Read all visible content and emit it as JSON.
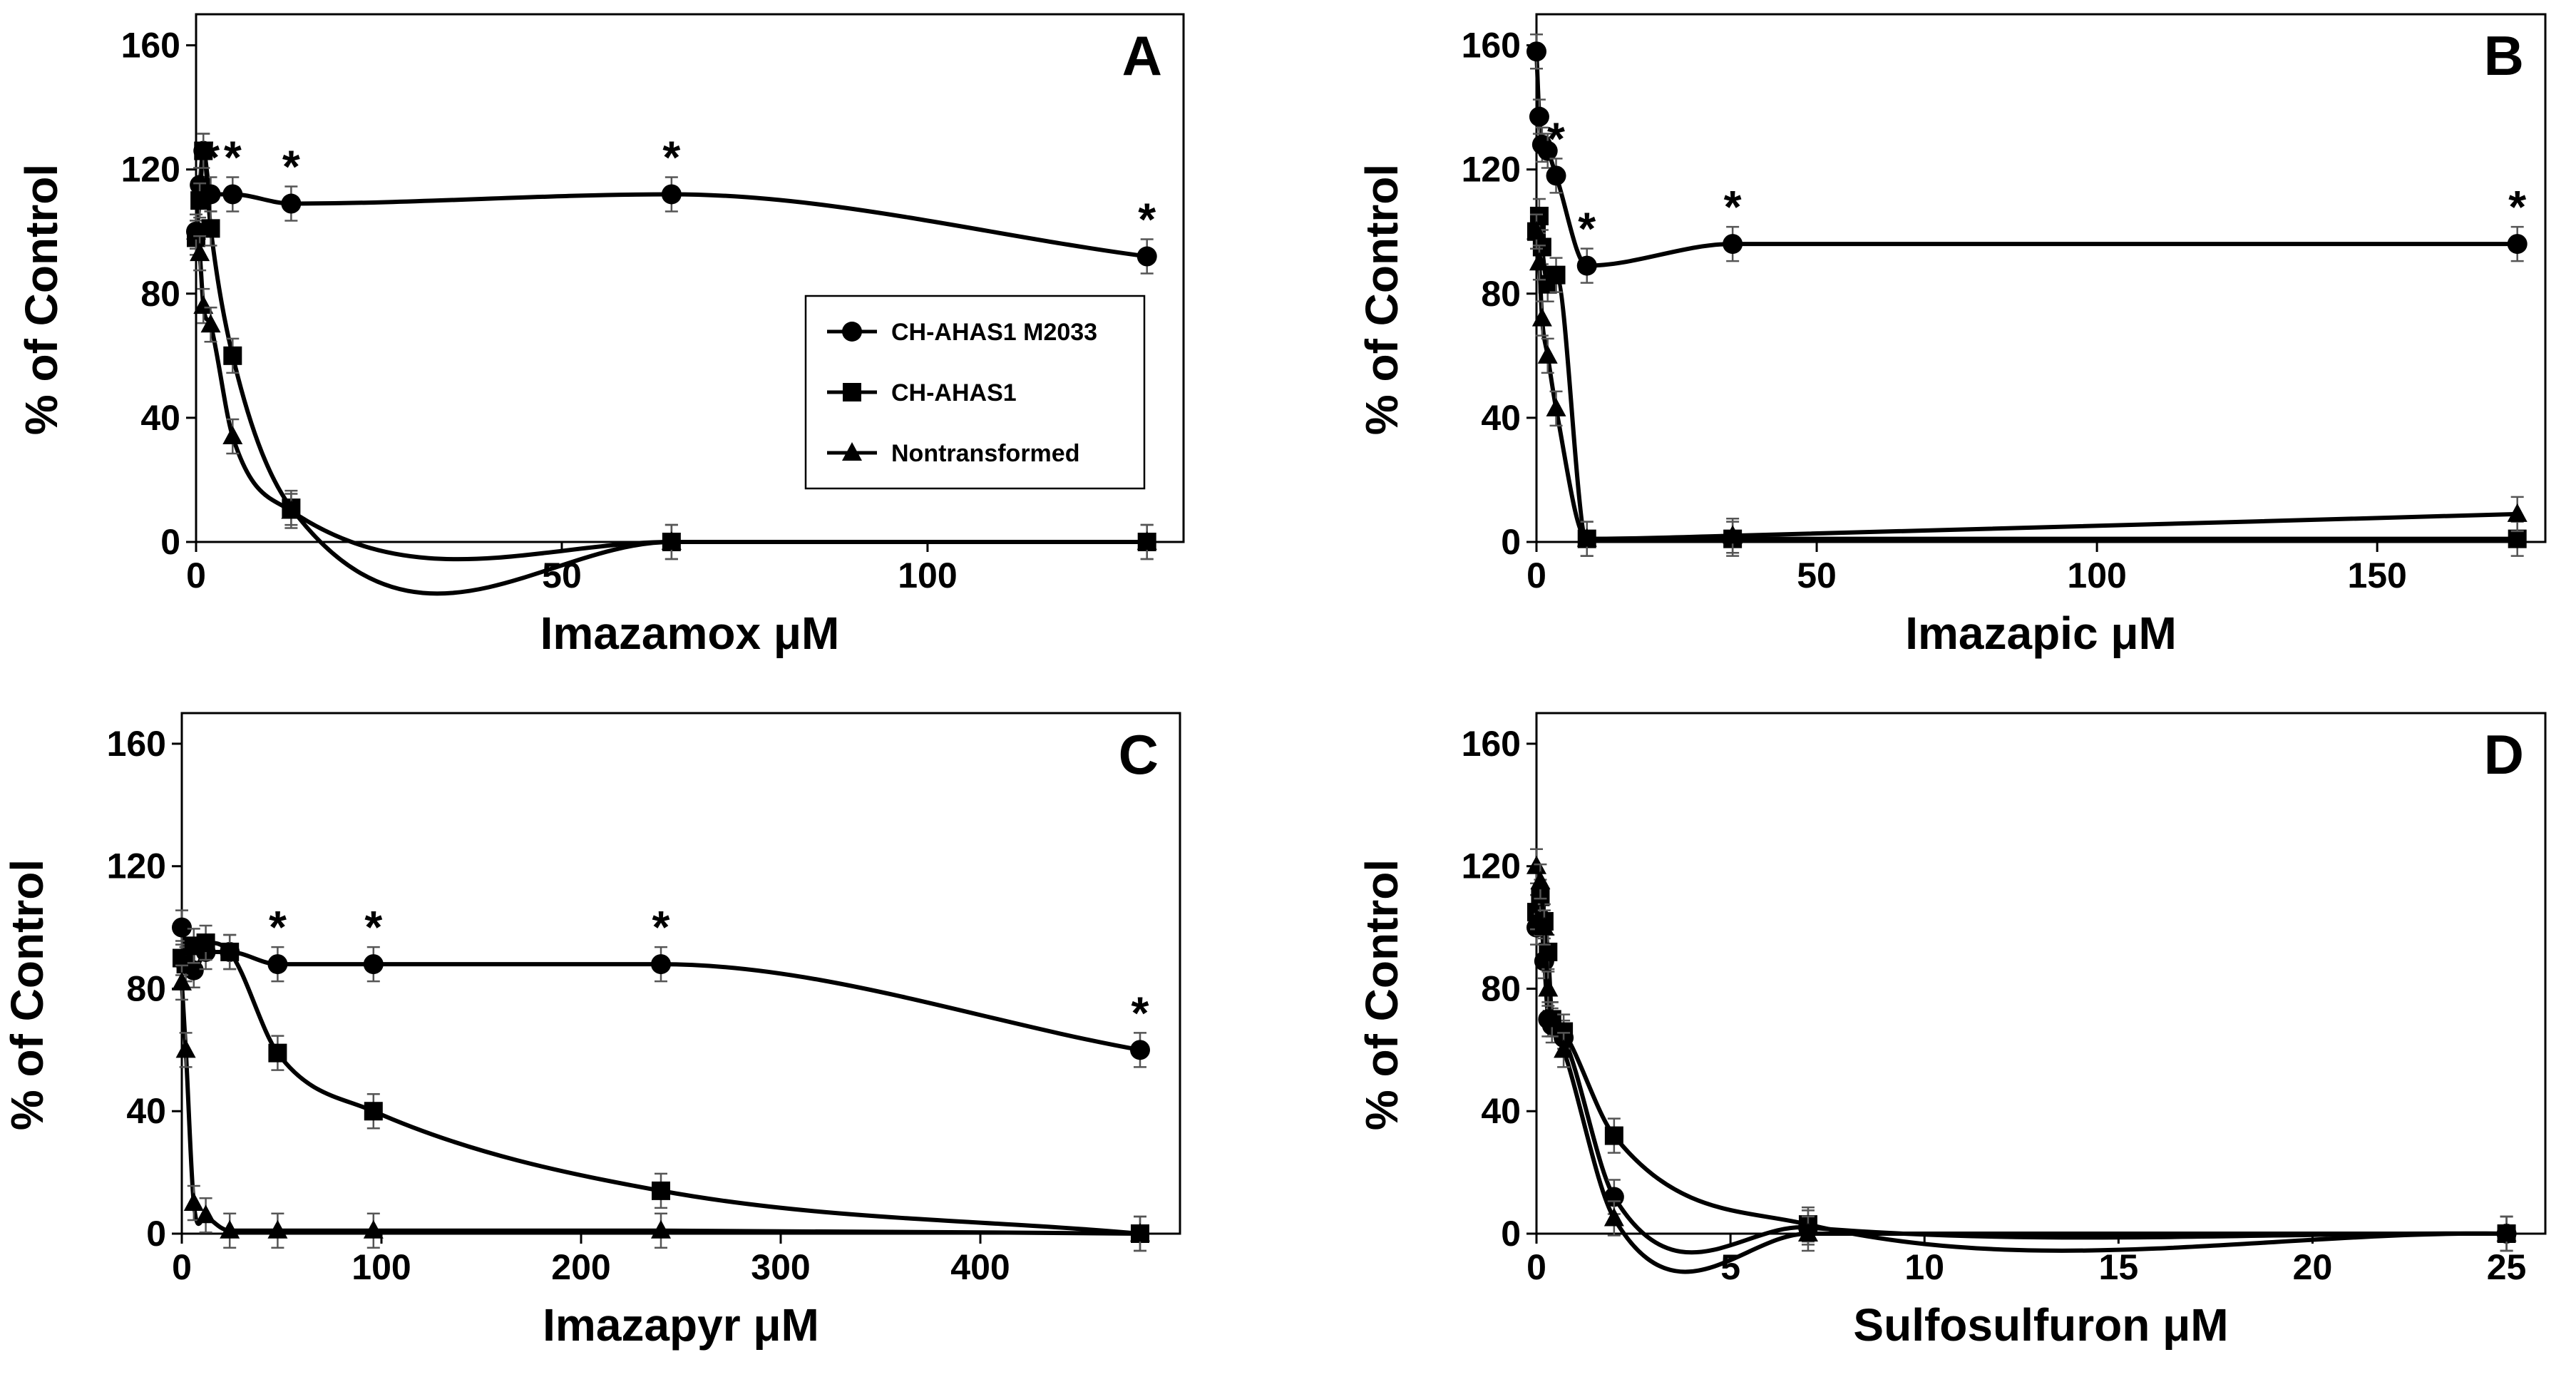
{
  "chart_data": [
    {
      "panel": "A",
      "type": "line",
      "xlabel": "Imazamox μM",
      "ylabel": "% of Control",
      "xlim": [
        0,
        135
      ],
      "ylim": [
        0,
        170
      ],
      "xticks": [
        "0",
        "50",
        "100"
      ],
      "yticks": [
        "0",
        "40",
        "80",
        "120",
        "160"
      ],
      "legend_position": "center-right",
      "series": [
        {
          "name": "CH-AHAS1 M2033",
          "marker": "circle",
          "x": [
            0,
            0.5,
            1,
            2,
            5,
            13,
            65,
            130
          ],
          "y": [
            100,
            115,
            126,
            112,
            112,
            109,
            112,
            92
          ],
          "significant": [
            false,
            false,
            false,
            true,
            true,
            true,
            true,
            true
          ]
        },
        {
          "name": "CH-AHAS1",
          "marker": "square",
          "x": [
            0,
            0.5,
            1,
            2,
            5,
            13,
            65,
            130
          ],
          "y": [
            98,
            110,
            126,
            101,
            60,
            11,
            0,
            0
          ],
          "significant": [
            false,
            false,
            false,
            false,
            false,
            false,
            false,
            false
          ]
        },
        {
          "name": "Nontransformed",
          "marker": "triangle",
          "x": [
            0,
            0.5,
            1,
            2,
            5,
            13,
            65,
            130
          ],
          "y": [
            100,
            93,
            76,
            70,
            34,
            10,
            0,
            0
          ],
          "significant": [
            false,
            false,
            false,
            false,
            false,
            false,
            false,
            false
          ]
        }
      ]
    },
    {
      "panel": "B",
      "type": "line",
      "xlabel": "Imazapic μM",
      "ylabel": "% of Control",
      "xlim": [
        0,
        180
      ],
      "ylim": [
        0,
        170
      ],
      "xticks": [
        "0",
        "50",
        "100",
        "150"
      ],
      "yticks": [
        "0",
        "40",
        "80",
        "120",
        "160"
      ],
      "series": [
        {
          "name": "CH-AHAS1 M2033",
          "marker": "circle",
          "x": [
            0,
            0.5,
            1,
            2,
            3.5,
            9,
            35,
            175
          ],
          "y": [
            158,
            137,
            128,
            126,
            118,
            89,
            96,
            96
          ],
          "significant": [
            false,
            false,
            false,
            false,
            true,
            true,
            true,
            true
          ]
        },
        {
          "name": "CH-AHAS1",
          "marker": "square",
          "x": [
            0,
            0.5,
            1,
            2,
            3.5,
            9,
            35,
            175
          ],
          "y": [
            100,
            105,
            95,
            83,
            86,
            1,
            1,
            1
          ]
        },
        {
          "name": "Nontransformed",
          "marker": "triangle",
          "x": [
            0,
            0.5,
            1,
            2,
            3.5,
            9,
            35,
            175
          ],
          "y": [
            100,
            90,
            72,
            60,
            43,
            1,
            2,
            9
          ]
        }
      ]
    },
    {
      "panel": "C",
      "type": "line",
      "xlabel": "Imazapyr μM",
      "ylabel": "% of Control",
      "xlim": [
        0,
        500
      ],
      "ylim": [
        0,
        170
      ],
      "xticks": [
        "0",
        "100",
        "200",
        "300",
        "400"
      ],
      "yticks": [
        "0",
        "40",
        "80",
        "120",
        "160"
      ],
      "series": [
        {
          "name": "CH-AHAS1 M2033",
          "marker": "circle",
          "x": [
            0,
            2,
            6,
            12,
            24,
            48,
            96,
            240,
            480
          ],
          "y": [
            100,
            88,
            86,
            92,
            92,
            88,
            88,
            88,
            60
          ],
          "significant": [
            false,
            false,
            false,
            false,
            false,
            true,
            true,
            true,
            true
          ]
        },
        {
          "name": "CH-AHAS1",
          "marker": "square",
          "x": [
            0,
            2,
            6,
            12,
            24,
            48,
            96,
            240,
            480
          ],
          "y": [
            90,
            88,
            94,
            95,
            92,
            59,
            40,
            14,
            0
          ]
        },
        {
          "name": "Nontransformed",
          "marker": "triangle",
          "x": [
            0,
            2,
            6,
            12,
            24,
            48,
            96,
            240,
            480
          ],
          "y": [
            82,
            60,
            10,
            6,
            1,
            1,
            1,
            1,
            0
          ]
        }
      ]
    },
    {
      "panel": "D",
      "type": "line",
      "xlabel": "Sulfosulfuron μM",
      "ylabel": "% of Control",
      "xlim": [
        0,
        26
      ],
      "ylim": [
        0,
        170
      ],
      "xticks": [
        "0",
        "5",
        "10",
        "15",
        "20",
        "25"
      ],
      "yticks": [
        "0",
        "40",
        "80",
        "120",
        "160"
      ],
      "series": [
        {
          "name": "CH-AHAS1 M2033",
          "marker": "circle",
          "x": [
            0,
            0.1,
            0.2,
            0.3,
            0.4,
            0.7,
            2,
            7,
            25
          ],
          "y": [
            100,
            103,
            89,
            70,
            68,
            64,
            12,
            2,
            0
          ]
        },
        {
          "name": "CH-AHAS1",
          "marker": "square",
          "x": [
            0,
            0.1,
            0.2,
            0.3,
            0.4,
            0.7,
            2,
            7,
            25
          ],
          "y": [
            105,
            110,
            102,
            92,
            70,
            66,
            32,
            3,
            0
          ]
        },
        {
          "name": "Nontransformed",
          "marker": "triangle",
          "x": [
            0,
            0.1,
            0.2,
            0.3,
            0.4,
            0.7,
            2,
            7,
            25
          ],
          "y": [
            120,
            115,
            100,
            80,
            70,
            60,
            5,
            0,
            0
          ]
        }
      ]
    }
  ],
  "panel_labels": [
    "A",
    "B",
    "C",
    "D"
  ],
  "legend": {
    "entries": [
      "CH-AHAS1 M2033",
      "CH-AHAS1",
      "Nontransformed"
    ]
  },
  "significance_marker": "*",
  "colors": {
    "line": "#000000",
    "background": "#ffffff"
  }
}
